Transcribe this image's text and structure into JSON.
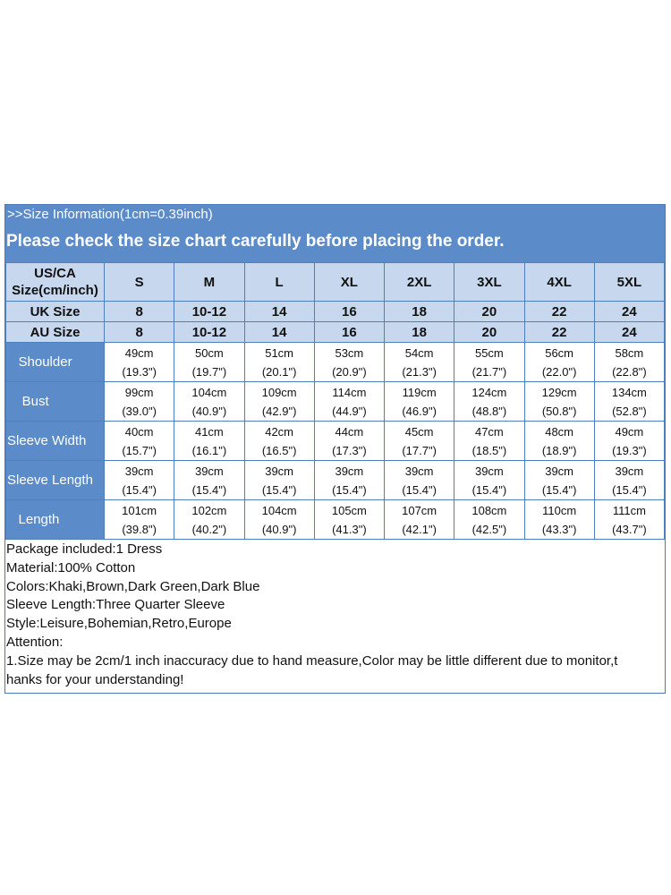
{
  "banner": {
    "info": ">>Size Information(1cm=0.39inch)",
    "notice": "Please check the size chart carefully before placing the order."
  },
  "header": {
    "first_line1": "US/CA",
    "first_line2": "Size(cm/inch)",
    "sizes": [
      "S",
      "M",
      "L",
      "XL",
      "2XL",
      "3XL",
      "4XL",
      "5XL"
    ]
  },
  "uk": {
    "label": "UK Size",
    "values": [
      "8",
      "10-12",
      "14",
      "16",
      "18",
      "20",
      "22",
      "24"
    ]
  },
  "au": {
    "label": "AU Size",
    "values": [
      "8",
      "10-12",
      "14",
      "16",
      "18",
      "20",
      "22",
      "24"
    ]
  },
  "measurements": [
    {
      "label": "Shoulder",
      "indent": "   ",
      "cm": [
        "49cm",
        "50cm",
        "51cm",
        "53cm",
        "54cm",
        "55cm",
        "56cm",
        "58cm"
      ],
      "inch": [
        "(19.3\")",
        "(19.7\")",
        "(20.1\")",
        "(20.9\")",
        "(21.3\")",
        "(21.7\")",
        "(22.0\")",
        "(22.8\")"
      ]
    },
    {
      "label": "Bust",
      "indent": "    ",
      "cm": [
        "99cm",
        "104cm",
        "109cm",
        "114cm",
        "119cm",
        "124cm",
        "129cm",
        "134cm"
      ],
      "inch": [
        "(39.0\")",
        "(40.9\")",
        "(42.9\")",
        "(44.9\")",
        "(46.9\")",
        "(48.8\")",
        "(50.8\")",
        "(52.8\")"
      ]
    },
    {
      "label": "Sleeve Width",
      "indent": "",
      "cm": [
        "40cm",
        "41cm",
        "42cm",
        "44cm",
        "45cm",
        "47cm",
        "48cm",
        "49cm"
      ],
      "inch": [
        "(15.7\")",
        "(16.1\")",
        "(16.5\")",
        "(17.3\")",
        "(17.7\")",
        "(18.5\")",
        "(18.9\")",
        "(19.3\")"
      ]
    },
    {
      "label": "Sleeve Length",
      "indent": "",
      "cm": [
        "39cm",
        "39cm",
        "39cm",
        "39cm",
        "39cm",
        "39cm",
        "39cm",
        "39cm"
      ],
      "inch": [
        "(15.4\")",
        "(15.4\")",
        "(15.4\")",
        "(15.4\")",
        "(15.4\")",
        "(15.4\")",
        "(15.4\")",
        "(15.4\")"
      ]
    },
    {
      "label": "Length",
      "indent": "   ",
      "cm": [
        "101cm",
        "102cm",
        "104cm",
        "105cm",
        "107cm",
        "108cm",
        "110cm",
        "111cm"
      ],
      "inch": [
        "(39.8\")",
        "(40.2\")",
        "(40.9\")",
        "(41.3\")",
        "(42.1\")",
        "(42.5\")",
        "(43.3\")",
        "(43.7\")"
      ]
    }
  ],
  "notes": [
    "Package included:1 Dress",
    "Material:100% Cotton",
    "Colors:Khaki,Brown,Dark Green,Dark Blue",
    "Sleeve Length:Three Quarter Sleeve",
    "Style:Leisure,Bohemian,Retro,Europe",
    "Attention:",
    "1.Size may be 2cm/1 inch inaccuracy due to hand measure,Color may be little different due to monitor,t",
    "hanks for your understanding!"
  ],
  "colors": {
    "banner": "#5b8bc9",
    "header_fill": "#c6d7ee",
    "border": "#4f7fbd"
  }
}
